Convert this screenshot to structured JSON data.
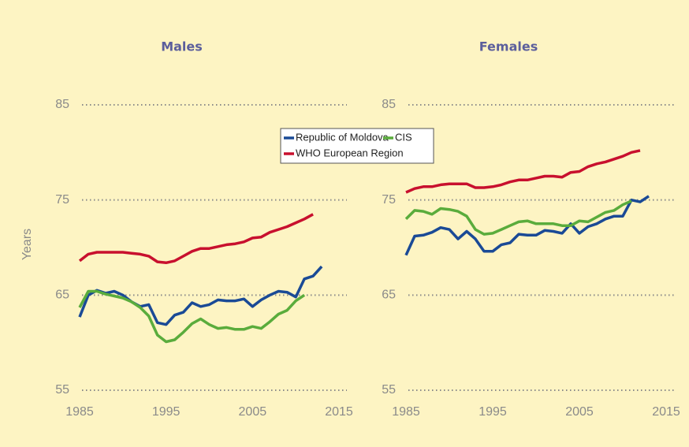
{
  "chart_data": [
    {
      "type": "line",
      "title": "Males",
      "ylabel": "Years",
      "x": [
        1985,
        1986,
        1987,
        1988,
        1989,
        1990,
        1991,
        1992,
        1993,
        1994,
        1995,
        1996,
        1997,
        1998,
        1999,
        2000,
        2001,
        2002,
        2003,
        2004,
        2005,
        2006,
        2007,
        2008,
        2009,
        2010,
        2011,
        2012,
        2013
      ],
      "xlim": [
        1985,
        2015
      ],
      "xticks": [
        1985,
        1995,
        2005,
        2015
      ],
      "ylim": [
        55,
        85
      ],
      "yticks": [
        55,
        65,
        75,
        85
      ],
      "grid": true,
      "series": [
        {
          "name": "Republic of Moldova",
          "color": "#1a4a96",
          "values": [
            62.7,
            65.0,
            65.5,
            65.2,
            65.4,
            65.0,
            64.3,
            63.8,
            64.0,
            62.1,
            61.9,
            62.9,
            63.2,
            64.2,
            63.8,
            64.0,
            64.5,
            64.4,
            64.4,
            64.6,
            63.8,
            64.5,
            65.0,
            65.4,
            65.3,
            64.8,
            66.7,
            67.0,
            68.0
          ]
        },
        {
          "name": "CIS",
          "color": "#5aac3c",
          "values": [
            63.7,
            65.4,
            65.4,
            65.1,
            64.9,
            64.7,
            64.3,
            63.7,
            62.8,
            60.8,
            60.1,
            60.3,
            61.1,
            62.0,
            62.5,
            61.9,
            61.5,
            61.6,
            61.4,
            61.4,
            61.7,
            61.5,
            62.2,
            63.0,
            63.4,
            64.4,
            65.0,
            null,
            null
          ]
        },
        {
          "name": "WHO European Region",
          "color": "#c8102e",
          "values": [
            68.6,
            69.3,
            69.5,
            69.5,
            69.5,
            69.5,
            69.4,
            69.3,
            69.1,
            68.5,
            68.4,
            68.6,
            69.1,
            69.6,
            69.9,
            69.9,
            70.1,
            70.3,
            70.4,
            70.6,
            71.0,
            71.1,
            71.6,
            71.9,
            72.2,
            72.6,
            73.0,
            73.5,
            null
          ]
        }
      ]
    },
    {
      "type": "line",
      "title": "Females",
      "x": [
        1985,
        1986,
        1987,
        1988,
        1989,
        1990,
        1991,
        1992,
        1993,
        1994,
        1995,
        1996,
        1997,
        1998,
        1999,
        2000,
        2001,
        2002,
        2003,
        2004,
        2005,
        2006,
        2007,
        2008,
        2009,
        2010,
        2011,
        2012,
        2013
      ],
      "xlim": [
        1985,
        2015
      ],
      "xticks": [
        1985,
        1995,
        2005,
        2015
      ],
      "ylim": [
        55,
        85
      ],
      "yticks": [
        55,
        65,
        75,
        85
      ],
      "grid": true,
      "series": [
        {
          "name": "Republic of Moldova",
          "color": "#1a4a96",
          "values": [
            69.2,
            71.2,
            71.3,
            71.6,
            72.1,
            71.9,
            70.9,
            71.7,
            70.9,
            69.6,
            69.6,
            70.3,
            70.5,
            71.4,
            71.3,
            71.3,
            71.8,
            71.7,
            71.5,
            72.5,
            71.5,
            72.2,
            72.5,
            73.0,
            73.3,
            73.3,
            75.0,
            74.8,
            75.4
          ]
        },
        {
          "name": "CIS",
          "color": "#5aac3c",
          "values": [
            73.0,
            73.9,
            73.8,
            73.5,
            74.1,
            74.0,
            73.8,
            73.3,
            71.9,
            71.4,
            71.5,
            71.9,
            72.3,
            72.7,
            72.8,
            72.5,
            72.5,
            72.5,
            72.3,
            72.3,
            72.8,
            72.7,
            73.2,
            73.7,
            73.9,
            74.5,
            74.9,
            null,
            null
          ]
        },
        {
          "name": "WHO European Region",
          "color": "#c8102e",
          "values": [
            75.8,
            76.2,
            76.4,
            76.4,
            76.6,
            76.7,
            76.7,
            76.7,
            76.3,
            76.3,
            76.4,
            76.6,
            76.9,
            77.1,
            77.1,
            77.3,
            77.5,
            77.5,
            77.4,
            77.9,
            78.0,
            78.5,
            78.8,
            79.0,
            79.3,
            79.6,
            80.0,
            80.2,
            null
          ]
        }
      ]
    }
  ]
}
